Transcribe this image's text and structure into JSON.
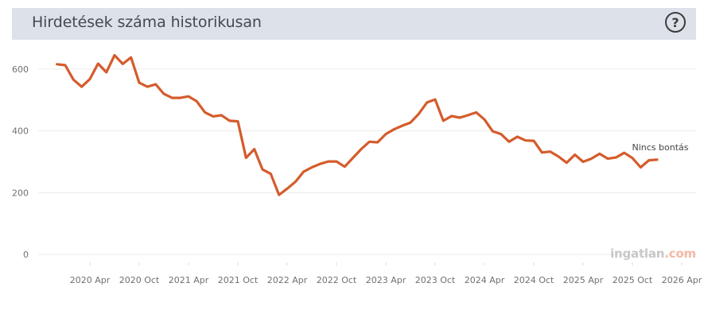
{
  "header": {
    "title": "Hirdetések száma historikusan",
    "help_icon": "question-circle-icon",
    "help_glyph": "?"
  },
  "watermark": {
    "brand": "ingatlan",
    "suffix": ".com"
  },
  "colors": {
    "line": "#d45c2c",
    "header_bg": "#dde2ea",
    "grid": "#ececec"
  },
  "chart_data": {
    "type": "line",
    "title": "Hirdetések száma historikusan",
    "xlabel": "",
    "ylabel": "",
    "ylim": [
      0,
      660
    ],
    "yticks": [
      0,
      200,
      400,
      600
    ],
    "grid": true,
    "x_tick_labels": [
      "2020 Apr",
      "2020 Oct",
      "2021 Apr",
      "2021 Oct",
      "2022 Apr",
      "2022 Oct",
      "2023 Apr",
      "2023 Oct",
      "2024 Apr",
      "2024 Oct",
      "2025 Apr",
      "2025 Oct",
      "2026 Apr"
    ],
    "x_start": "2019 Dec",
    "series": [
      {
        "name": "Nincs bontás",
        "values": [
          616,
          613,
          566,
          543,
          568,
          618,
          590,
          645,
          617,
          638,
          556,
          543,
          551,
          520,
          507,
          507,
          512,
          496,
          460,
          447,
          451,
          433,
          431,
          313,
          341,
          275,
          261,
          193,
          213,
          235,
          268,
          282,
          293,
          301,
          301,
          284,
          313,
          341,
          365,
          363,
          390,
          405,
          417,
          427,
          455,
          492,
          502,
          433,
          448,
          443,
          451,
          460,
          437,
          399,
          390,
          365,
          381,
          369,
          368,
          330,
          333,
          317,
          297,
          323,
          300,
          310,
          326,
          310,
          314,
          329,
          312,
          282,
          305,
          307
        ]
      }
    ]
  }
}
